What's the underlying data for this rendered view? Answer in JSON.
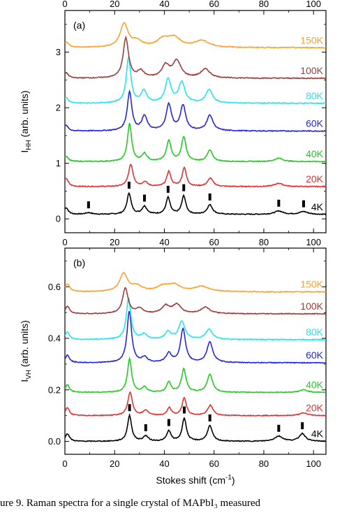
{
  "chart_data": [
    {
      "type": "line",
      "panel_label": "(a)",
      "ylabel": "I",
      "ylabel_sub": "HH",
      "ylabel_suffix": " (arb. units)",
      "xlim": [
        0,
        105
      ],
      "ylim": [
        -0.25,
        3.75
      ],
      "xticks": [
        0,
        20,
        40,
        60,
        80,
        100
      ],
      "yticks": [
        0,
        1,
        2,
        3
      ],
      "top_axis_labels": true,
      "series": [
        {
          "name": "4K",
          "color": "#000000",
          "offset": 0.08,
          "baseline": 0.0,
          "peaks": [
            [
              0.5,
              0.12,
              1.0
            ],
            [
              9.5,
              0.03,
              1.5
            ],
            [
              25.8,
              0.38,
              1.0
            ],
            [
              32.0,
              0.14,
              1.2
            ],
            [
              41.5,
              0.3,
              1.0
            ],
            [
              47.8,
              0.33,
              1.0
            ],
            [
              58.3,
              0.17,
              1.3
            ],
            [
              86.0,
              0.06,
              2.0
            ],
            [
              96.0,
              0.05,
              2.0
            ]
          ]
        },
        {
          "name": "20K",
          "color": "#e53030",
          "offset": 0.58,
          "baseline": 0.0,
          "peaks": [
            [
              0.5,
              0.15,
              1.0
            ],
            [
              26.5,
              0.4,
              1.1
            ],
            [
              32.2,
              0.08,
              1.2
            ],
            [
              41.8,
              0.27,
              1.0
            ],
            [
              48.0,
              0.34,
              1.0
            ],
            [
              58.5,
              0.15,
              1.3
            ],
            [
              86.0,
              0.06,
              2.0
            ]
          ]
        },
        {
          "name": "40K",
          "color": "#22cc22",
          "offset": 1.03,
          "baseline": 0.0,
          "peaks": [
            [
              0.5,
              0.1,
              1.0
            ],
            [
              26.0,
              0.68,
              1.0
            ],
            [
              32.0,
              0.14,
              1.2
            ],
            [
              41.8,
              0.38,
              1.1
            ],
            [
              47.8,
              0.44,
              1.1
            ],
            [
              58.3,
              0.2,
              1.3
            ],
            [
              86.0,
              0.06,
              2.0
            ]
          ]
        },
        {
          "name": "60K",
          "color": "#2525e0",
          "offset": 1.58,
          "baseline": 0.0,
          "peaks": [
            [
              0.5,
              0.1,
              1.0
            ],
            [
              26.0,
              0.7,
              1.1
            ],
            [
              32.0,
              0.26,
              1.3
            ],
            [
              41.8,
              0.47,
              1.3
            ],
            [
              47.5,
              0.45,
              1.3
            ],
            [
              58.3,
              0.28,
              1.5
            ]
          ]
        },
        {
          "name": "80K",
          "color": "#22e6ee",
          "offset": 2.08,
          "baseline": 0.0,
          "peaks": [
            [
              0.5,
              0.1,
              1.0
            ],
            [
              25.6,
              0.82,
              1.1
            ],
            [
              31.8,
              0.22,
              1.3
            ],
            [
              41.5,
              0.42,
              1.4
            ],
            [
              47.0,
              0.37,
              1.5
            ],
            [
              58.0,
              0.24,
              1.6
            ]
          ]
        },
        {
          "name": "100K",
          "color": "#a03c3c",
          "offset": 2.53,
          "baseline": 0.0,
          "peaks": [
            [
              0.5,
              0.1,
              1.0
            ],
            [
              24.5,
              0.72,
              1.3
            ],
            [
              30.5,
              0.12,
              1.6
            ],
            [
              40.5,
              0.22,
              1.8
            ],
            [
              45.0,
              0.3,
              2.0
            ],
            [
              56.5,
              0.16,
              2.2
            ]
          ]
        },
        {
          "name": "150K",
          "color": "#ffa030",
          "offset": 3.08,
          "baseline": 0.0,
          "peaks": [
            [
              0.5,
              0.1,
              1.2
            ],
            [
              23.8,
              0.42,
              1.9
            ],
            [
              29.0,
              0.1,
              2.5
            ],
            [
              39.5,
              0.14,
              3.0
            ],
            [
              44.0,
              0.16,
              3.0
            ],
            [
              55.0,
              0.12,
              3.5
            ]
          ]
        }
      ],
      "markers": [
        9.5,
        25.8,
        32.0,
        41.5,
        47.8,
        58.3,
        86.0,
        96.0
      ]
    },
    {
      "type": "line",
      "panel_label": "(b)",
      "ylabel": "I",
      "ylabel_sub": "VH",
      "ylabel_suffix": " (arb. units)",
      "xlabel": "Stokes shift (cm",
      "xlabel_sup": "-1",
      "xlabel_suffix": ")",
      "xlim": [
        0,
        105
      ],
      "ylim": [
        -0.05,
        0.75
      ],
      "xticks": [
        0,
        20,
        40,
        60,
        80,
        100
      ],
      "yticks": [
        0.0,
        0.2,
        0.4,
        0.6
      ],
      "ytick_labels": [
        "0.0",
        "0.2",
        "0.4",
        "0.6"
      ],
      "series": [
        {
          "name": "4K",
          "color": "#000000",
          "offset": 0.0,
          "baseline": 0.0,
          "peaks": [
            [
              1.0,
              0.03,
              1.0
            ],
            [
              26.0,
              0.1,
              1.0
            ],
            [
              32.5,
              0.02,
              1.2
            ],
            [
              41.8,
              0.04,
              1.0
            ],
            [
              48.0,
              0.09,
              1.0
            ],
            [
              58.3,
              0.06,
              1.2
            ],
            [
              86.0,
              0.02,
              2.0
            ],
            [
              95.5,
              0.03,
              1.5
            ]
          ]
        },
        {
          "name": "20K",
          "color": "#e53030",
          "offset": 0.1,
          "baseline": 0.0,
          "peaks": [
            [
              1.0,
              0.03,
              1.0
            ],
            [
              26.2,
              0.09,
              1.1
            ],
            [
              32.5,
              0.02,
              1.2
            ],
            [
              42.0,
              0.03,
              1.0
            ],
            [
              48.0,
              0.07,
              1.0
            ],
            [
              58.5,
              0.04,
              1.3
            ],
            [
              96.0,
              0.01,
              2.0
            ]
          ]
        },
        {
          "name": "40K",
          "color": "#22cc22",
          "offset": 0.19,
          "baseline": 0.0,
          "peaks": [
            [
              1.0,
              0.03,
              1.0
            ],
            [
              26.0,
              0.13,
              1.0
            ],
            [
              32.0,
              0.02,
              1.2
            ],
            [
              41.8,
              0.04,
              1.0
            ],
            [
              47.8,
              0.09,
              1.1
            ],
            [
              58.3,
              0.07,
              1.3
            ],
            [
              96.0,
              0.01,
              2.0
            ]
          ]
        },
        {
          "name": "60K",
          "color": "#2525e0",
          "offset": 0.305,
          "baseline": 0.0,
          "peaks": [
            [
              1.0,
              0.03,
              1.0
            ],
            [
              25.9,
              0.2,
              1.1
            ],
            [
              32.0,
              0.02,
              1.3
            ],
            [
              41.8,
              0.035,
              1.3
            ],
            [
              47.5,
              0.13,
              1.2
            ],
            [
              58.3,
              0.08,
              1.4
            ]
          ]
        },
        {
          "name": "80K",
          "color": "#22e6ee",
          "offset": 0.395,
          "baseline": 0.0,
          "peaks": [
            [
              1.0,
              0.03,
              1.0
            ],
            [
              25.6,
              0.16,
              1.1
            ],
            [
              31.8,
              0.02,
              1.3
            ],
            [
              41.5,
              0.03,
              1.4
            ],
            [
              47.0,
              0.07,
              1.5
            ],
            [
              58.0,
              0.04,
              1.6
            ]
          ]
        },
        {
          "name": "100K",
          "color": "#a03c3c",
          "offset": 0.495,
          "baseline": 0.0,
          "peaks": [
            [
              1.0,
              0.03,
              1.0
            ],
            [
              24.3,
              0.1,
              1.3
            ],
            [
              30.0,
              0.02,
              1.6
            ],
            [
              40.5,
              0.03,
              1.8
            ],
            [
              45.0,
              0.035,
              2.0
            ],
            [
              56.5,
              0.025,
              2.2
            ]
          ]
        },
        {
          "name": "150K",
          "color": "#ffa030",
          "offset": 0.58,
          "baseline": 0.0,
          "peaks": [
            [
              1.0,
              0.03,
              1.2
            ],
            [
              23.6,
              0.07,
              1.9
            ],
            [
              29.0,
              0.02,
              2.5
            ],
            [
              39.5,
              0.02,
              3.0
            ],
            [
              44.0,
              0.025,
              3.0
            ],
            [
              55.0,
              0.02,
              3.5
            ]
          ]
        }
      ],
      "markers": [
        26.0,
        32.5,
        41.8,
        48.0,
        58.3,
        86.0,
        95.5
      ]
    }
  ],
  "caption": "ure 9. Raman spectra for a single crystal of MAPbI₃ measured"
}
